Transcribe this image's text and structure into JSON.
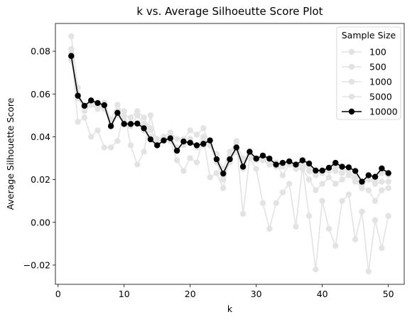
{
  "chart_data": {
    "type": "line",
    "title": "k vs. Average Silhoeutte Score Plot",
    "xlabel": "k",
    "ylabel": "Average Silhouette Score",
    "xlim": [
      -0.4,
      52.4
    ],
    "ylim": [
      -0.029,
      0.093
    ],
    "xticks": [
      0,
      10,
      20,
      30,
      40,
      50
    ],
    "yticks": [
      -0.02,
      0.0,
      0.02,
      0.04,
      0.06,
      0.08
    ],
    "ytick_labels": [
      "−0.02",
      "0.00",
      "0.02",
      "0.04",
      "0.06",
      "0.08"
    ],
    "grid": false,
    "legend": {
      "title": "Sample Size",
      "placement": "top-right"
    },
    "x": [
      2,
      3,
      4,
      5,
      6,
      7,
      8,
      9,
      10,
      11,
      12,
      13,
      14,
      15,
      16,
      17,
      18,
      19,
      20,
      21,
      22,
      23,
      24,
      25,
      26,
      27,
      28,
      29,
      30,
      31,
      32,
      33,
      34,
      35,
      36,
      37,
      38,
      39,
      40,
      41,
      42,
      43,
      44,
      45,
      46,
      47,
      48,
      49,
      50
    ],
    "series": [
      {
        "name": "100",
        "color": "#e3e3e3",
        "values": [
          0.081,
          0.047,
          0.049,
          0.04,
          0.043,
          0.035,
          0.035,
          0.038,
          0.052,
          0.036,
          0.027,
          0.033,
          0.05,
          0.037,
          0.04,
          0.038,
          0.029,
          0.024,
          0.03,
          0.028,
          0.04,
          0.021,
          0.023,
          0.016,
          0.031,
          0.038,
          0.004,
          0.03,
          0.025,
          0.009,
          -0.003,
          0.009,
          0.014,
          0.018,
          -0.002,
          0.026,
          0.003,
          -0.022,
          0.01,
          -0.003,
          -0.011,
          0.01,
          0.013,
          -0.008,
          0.005,
          -0.023,
          0.001,
          -0.012,
          0.003
        ]
      },
      {
        "name": "500",
        "color": "#e3e3e3",
        "values": [
          0.087,
          0.063,
          0.052,
          0.055,
          0.053,
          0.056,
          0.048,
          0.055,
          0.05,
          0.049,
          0.052,
          0.049,
          0.043,
          0.039,
          0.04,
          0.042,
          0.039,
          0.039,
          0.043,
          0.041,
          0.044,
          0.036,
          0.032,
          0.025,
          0.033,
          0.037,
          0.03,
          0.03,
          0.029,
          0.031,
          0.029,
          0.028,
          0.027,
          0.028,
          0.026,
          0.028,
          0.024,
          0.022,
          0.024,
          0.025,
          0.024,
          0.023,
          0.024,
          0.02,
          0.019,
          0.02,
          0.018,
          0.019,
          0.019
        ]
      },
      {
        "name": "1000",
        "color": "#e3e3e3",
        "values": [
          0.079,
          0.06,
          0.054,
          0.056,
          0.055,
          0.054,
          0.046,
          0.052,
          0.048,
          0.045,
          0.05,
          0.046,
          0.044,
          0.037,
          0.038,
          0.04,
          0.035,
          0.036,
          0.039,
          0.036,
          0.039,
          0.036,
          0.028,
          0.02,
          0.028,
          0.034,
          0.028,
          0.031,
          0.029,
          0.029,
          0.027,
          0.028,
          0.022,
          0.027,
          0.025,
          0.025,
          0.02,
          0.015,
          0.018,
          0.021,
          0.018,
          0.02,
          0.022,
          0.019,
          0.016,
          0.015,
          0.01,
          0.015,
          0.016
        ]
      },
      {
        "name": "5000",
        "color": "#e3e3e3",
        "values": [
          0.076,
          0.058,
          0.053,
          0.055,
          0.054,
          0.053,
          0.045,
          0.05,
          0.046,
          0.046,
          0.046,
          0.043,
          0.04,
          0.036,
          0.038,
          0.039,
          0.034,
          0.037,
          0.037,
          0.035,
          0.036,
          0.038,
          0.029,
          0.021,
          0.029,
          0.033,
          0.025,
          0.032,
          0.029,
          0.03,
          0.028,
          0.026,
          0.026,
          0.027,
          0.026,
          0.027,
          0.026,
          0.023,
          0.023,
          0.024,
          0.026,
          0.025,
          0.024,
          0.021,
          0.018,
          0.02,
          0.02,
          0.023,
          0.022
        ]
      },
      {
        "name": "10000",
        "color": "#000000",
        "values": [
          0.0778,
          0.0592,
          0.0545,
          0.057,
          0.0558,
          0.0548,
          0.045,
          0.0512,
          0.046,
          0.046,
          0.0462,
          0.044,
          0.0388,
          0.036,
          0.0383,
          0.0393,
          0.0335,
          0.0378,
          0.0372,
          0.036,
          0.0367,
          0.0383,
          0.0295,
          0.0228,
          0.0295,
          0.035,
          0.026,
          0.033,
          0.0298,
          0.0312,
          0.0298,
          0.027,
          0.0278,
          0.0285,
          0.027,
          0.029,
          0.0275,
          0.0242,
          0.0242,
          0.0255,
          0.0278,
          0.026,
          0.0257,
          0.024,
          0.019,
          0.022,
          0.0213,
          0.0252,
          0.023
        ]
      }
    ]
  }
}
